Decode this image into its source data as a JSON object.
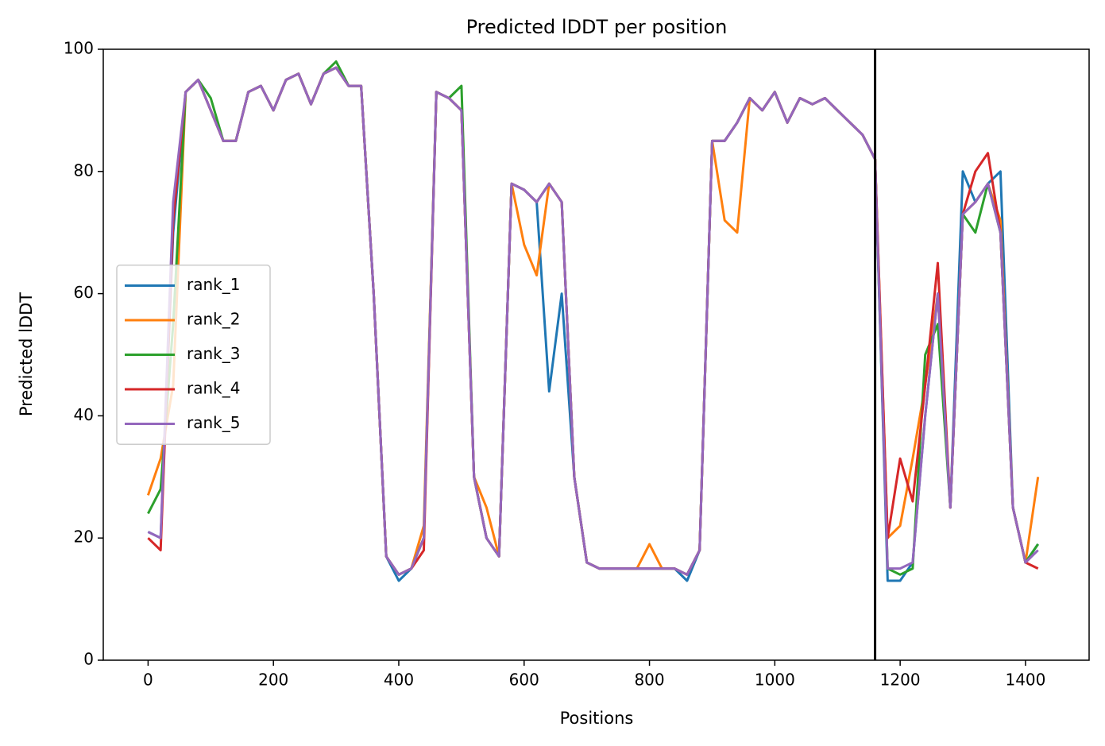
{
  "chart_data": {
    "type": "line",
    "title": "Predicted lDDT per position",
    "xlabel": "Positions",
    "ylabel": "Predicted lDDT",
    "xlim": [
      -71.5,
      1501.5
    ],
    "ylim": [
      0,
      100
    ],
    "xticks": [
      0,
      200,
      400,
      600,
      800,
      1000,
      1200,
      1400
    ],
    "yticks": [
      0,
      20,
      40,
      60,
      80,
      100
    ],
    "vline": 1160,
    "legend": "center left",
    "x": [
      0,
      20,
      40,
      60,
      80,
      100,
      120,
      140,
      160,
      180,
      200,
      220,
      240,
      260,
      280,
      300,
      320,
      340,
      360,
      380,
      400,
      420,
      440,
      460,
      480,
      500,
      520,
      540,
      560,
      580,
      600,
      620,
      640,
      660,
      680,
      700,
      720,
      740,
      760,
      780,
      800,
      820,
      840,
      860,
      880,
      900,
      920,
      940,
      960,
      980,
      1000,
      1020,
      1040,
      1060,
      1080,
      1100,
      1120,
      1140,
      1160,
      1180,
      1200,
      1220,
      1240,
      1260,
      1280,
      1300,
      1320,
      1340,
      1360,
      1380,
      1400,
      1420
    ],
    "series": [
      {
        "name": "rank_1",
        "color": "#1f77b4",
        "values": [
          21,
          20,
          70,
          93,
          95,
          90,
          85,
          85,
          93,
          94,
          90,
          95,
          96,
          91,
          96,
          97,
          94,
          94,
          60,
          17,
          13,
          15,
          20,
          93,
          92,
          90,
          30,
          20,
          17,
          78,
          77,
          75,
          44,
          60,
          30,
          16,
          15,
          15,
          15,
          15,
          15,
          15,
          15,
          13,
          18,
          85,
          85,
          88,
          92,
          90,
          93,
          88,
          92,
          91,
          92,
          90,
          88,
          86,
          82,
          13,
          13,
          16,
          40,
          60,
          25,
          80,
          75,
          78,
          80,
          25,
          16,
          19
        ]
      },
      {
        "name": "rank_2",
        "color": "#ff7f0e",
        "values": [
          27,
          33,
          45,
          93,
          95,
          90,
          85,
          85,
          93,
          94,
          90,
          95,
          96,
          91,
          96,
          97,
          94,
          94,
          60,
          17,
          14,
          15,
          22,
          93,
          92,
          90,
          30,
          25,
          17,
          78,
          68,
          63,
          78,
          75,
          30,
          16,
          15,
          15,
          15,
          15,
          19,
          15,
          15,
          14,
          18,
          85,
          72,
          70,
          92,
          90,
          93,
          88,
          92,
          91,
          92,
          90,
          88,
          86,
          82,
          20,
          22,
          33,
          45,
          60,
          25,
          73,
          75,
          78,
          72,
          25,
          16,
          30
        ]
      },
      {
        "name": "rank_3",
        "color": "#2ca02c",
        "values": [
          24,
          28,
          55,
          93,
          95,
          92,
          85,
          85,
          93,
          94,
          90,
          95,
          96,
          91,
          96,
          98,
          94,
          94,
          60,
          17,
          14,
          15,
          20,
          93,
          92,
          94,
          30,
          20,
          17,
          78,
          77,
          75,
          78,
          75,
          30,
          16,
          15,
          15,
          15,
          15,
          15,
          15,
          15,
          14,
          18,
          85,
          85,
          88,
          92,
          90,
          93,
          88,
          92,
          91,
          92,
          90,
          88,
          86,
          82,
          15,
          14,
          15,
          50,
          55,
          25,
          73,
          70,
          78,
          70,
          25,
          16,
          19
        ]
      },
      {
        "name": "rank_4",
        "color": "#d62728",
        "values": [
          20,
          18,
          72,
          93,
          95,
          90,
          85,
          85,
          93,
          94,
          90,
          95,
          96,
          91,
          96,
          97,
          94,
          94,
          60,
          17,
          14,
          15,
          18,
          93,
          92,
          90,
          30,
          20,
          17,
          78,
          77,
          75,
          78,
          75,
          30,
          16,
          15,
          15,
          15,
          15,
          15,
          15,
          15,
          14,
          18,
          85,
          85,
          88,
          92,
          90,
          93,
          88,
          92,
          91,
          92,
          90,
          88,
          86,
          82,
          20,
          33,
          26,
          45,
          65,
          25,
          73,
          80,
          83,
          70,
          25,
          16,
          15
        ]
      },
      {
        "name": "rank_5",
        "color": "#9467bd",
        "values": [
          21,
          20,
          75,
          93,
          95,
          90,
          85,
          85,
          93,
          94,
          90,
          95,
          96,
          91,
          96,
          97,
          94,
          94,
          60,
          17,
          14,
          15,
          20,
          93,
          92,
          90,
          30,
          20,
          17,
          78,
          77,
          75,
          78,
          75,
          30,
          16,
          15,
          15,
          15,
          15,
          15,
          15,
          15,
          14,
          18,
          85,
          85,
          88,
          92,
          90,
          93,
          88,
          92,
          91,
          92,
          90,
          88,
          86,
          82,
          15,
          15,
          16,
          40,
          60,
          25,
          73,
          75,
          78,
          70,
          25,
          16,
          18
        ]
      }
    ]
  }
}
